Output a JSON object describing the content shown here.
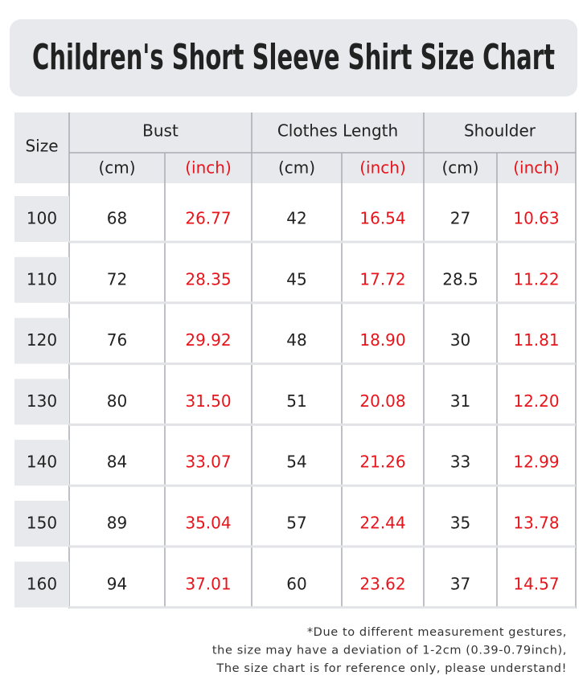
{
  "title": "Children's Short Sleeve Shirt Size Chart",
  "table": {
    "size_header": "Size",
    "groups": [
      {
        "name": "Bust",
        "units": [
          "(cm)",
          "(inch)"
        ]
      },
      {
        "name": "Clothes Length",
        "units": [
          "(cm)",
          "(inch)"
        ]
      },
      {
        "name": "Shoulder",
        "units": [
          "(cm)",
          "(inch)"
        ]
      }
    ],
    "rows": [
      [
        "100",
        "68",
        "26.77",
        "42",
        "16.54",
        "27",
        "10.63"
      ],
      [
        "110",
        "72",
        "28.35",
        "45",
        "17.72",
        "28.5",
        "11.22"
      ],
      [
        "120",
        "76",
        "29.92",
        "48",
        "18.90",
        "30",
        "11.81"
      ],
      [
        "130",
        "80",
        "31.50",
        "51",
        "20.08",
        "31",
        "12.20"
      ],
      [
        "140",
        "84",
        "33.07",
        "54",
        "21.26",
        "33",
        "12.99"
      ],
      [
        "150",
        "89",
        "35.04",
        "57",
        "22.44",
        "35",
        "13.78"
      ],
      [
        "160",
        "94",
        "37.01",
        "60",
        "23.62",
        "37",
        "14.57"
      ]
    ]
  },
  "footnote": [
    "*Due to different measurement gestures,",
    "the size may have a deviation of 1-2cm (0.39-0.79inch),",
    "The size chart is for reference only, please understand!"
  ]
}
